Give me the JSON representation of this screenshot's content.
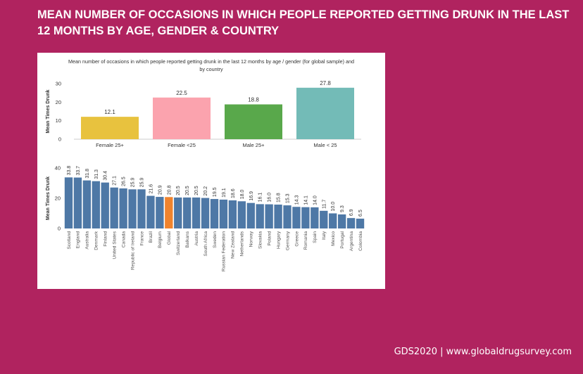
{
  "slide": {
    "title": "MEAN NUMBER OF OCCASIONS IN WHICH PEOPLE REPORTED GETTING DRUNK IN THE LAST 12 MONTHS BY AGE, GENDER & COUNTRY",
    "footer": "GDS2020 | www.globaldrugsurvey.com"
  },
  "chart_data": [
    {
      "type": "bar",
      "title": "Mean number of occasions in which people reported getting drunk in the last 12 months by age / gender (for global sample) and by country",
      "ylabel": "Mean Times Drunk",
      "ylim": [
        0,
        30
      ],
      "yticks": [
        0,
        10,
        20,
        30
      ],
      "categories": [
        "Female 25+",
        "Female <25",
        "Male 25+",
        "Male < 25"
      ],
      "values": [
        12.1,
        22.5,
        18.8,
        27.8
      ],
      "value_labels": [
        "12.1",
        "22.5",
        "18.8",
        "27.8"
      ],
      "colors": [
        "#e8c23e",
        "#fba3ae",
        "#59a84b",
        "#73bbb7"
      ]
    },
    {
      "type": "bar",
      "ylabel": "Mean Times Drunk",
      "ylim": [
        0,
        40
      ],
      "yticks": [
        0,
        20,
        40
      ],
      "categories": [
        "Scotland",
        "England",
        "Australia",
        "Denmark",
        "Finland",
        "United States",
        "Canada",
        "Republic of Ireland",
        "France",
        "Brazil",
        "Belgium",
        "Global",
        "Switzerland",
        "Balkans",
        "Austria",
        "South Africa",
        "Sweden",
        "Russian Federation",
        "New Zealand",
        "Netherlands",
        "Norway",
        "Slovakia",
        "Poland",
        "Hungary",
        "Germany",
        "Greece",
        "Romania",
        "Spain",
        "Italy",
        "Mexico",
        "Portugal",
        "Argentina",
        "Colombia"
      ],
      "values": [
        33.8,
        33.7,
        31.8,
        31.3,
        30.4,
        27.1,
        26.5,
        25.9,
        25.9,
        21.6,
        20.9,
        20.8,
        20.5,
        20.5,
        20.5,
        20.2,
        19.5,
        19.1,
        18.6,
        18.0,
        16.9,
        16.1,
        16.0,
        15.8,
        15.3,
        14.3,
        14.1,
        14.0,
        11.7,
        10.0,
        9.3,
        6.9,
        6.5
      ],
      "value_labels": [
        "33.8",
        "33.7",
        "31.8",
        "31.3",
        "30.4",
        "27.1",
        "26.5",
        "25.9",
        "25.9",
        "21.6",
        "20.9",
        "20.8",
        "20.5",
        "20.5",
        "20.5",
        "20.2",
        "19.5",
        "19.1",
        "18.6",
        "18.0",
        "16.9",
        "16.1",
        "16.0",
        "15.8",
        "15.3",
        "14.3",
        "14.1",
        "14.0",
        "11.7",
        "10.0",
        "9.3",
        "6.9",
        "6.5"
      ],
      "bar_color": "#4e78a6",
      "highlight_category": "Global",
      "highlight_color": "#f0832d"
    }
  ]
}
